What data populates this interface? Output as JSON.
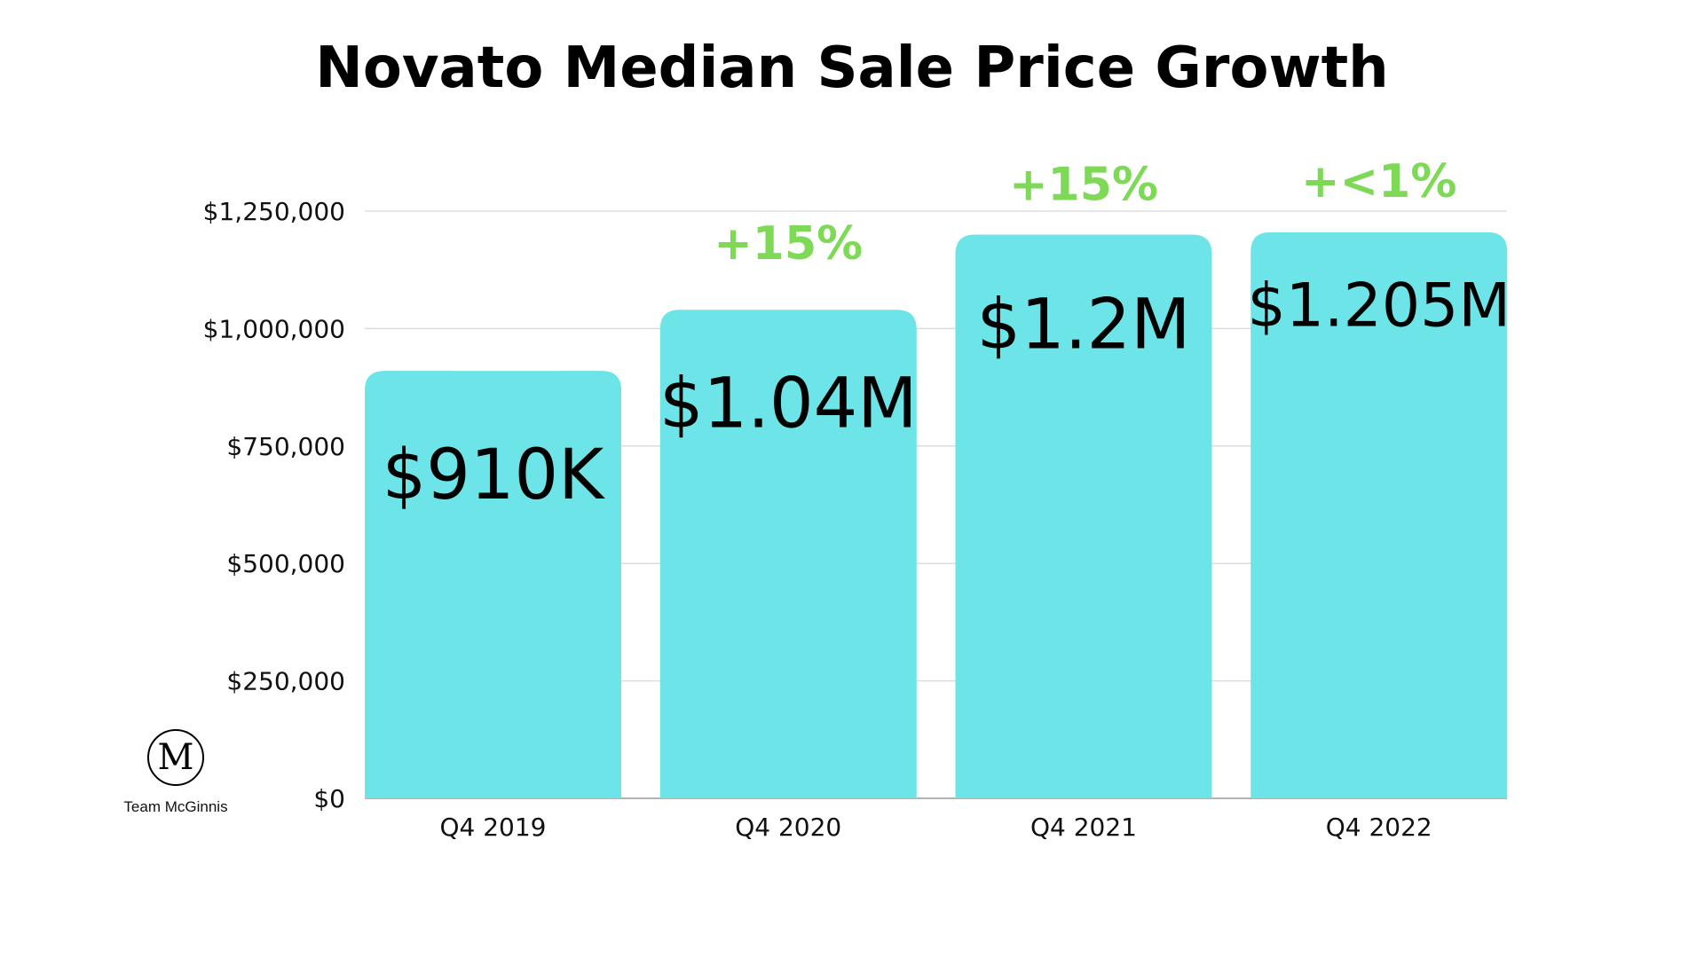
{
  "chart_data": {
    "type": "bar",
    "title": "Novato Median Sale Price Growth",
    "categories": [
      "Q4 2019",
      "Q4 2020",
      "Q4 2021",
      "Q4 2022"
    ],
    "values": [
      910000,
      1040000,
      1200000,
      1205000
    ],
    "value_labels": [
      "$910K",
      "$1.04M",
      "$1.2M",
      "$1.205M"
    ],
    "growth_labels": [
      "",
      "+15%",
      "+15%",
      "+<1%"
    ],
    "ylim": [
      0,
      1250000
    ],
    "yticks": [
      0,
      250000,
      500000,
      750000,
      1000000,
      1250000
    ],
    "ytick_labels": [
      "$0",
      "$250,000",
      "$500,000",
      "$750,000",
      "$1,000,000",
      "$1,250,000"
    ],
    "xlabel": "",
    "ylabel": "",
    "grid": true,
    "colors": {
      "bar": "#6ce4e8",
      "growth": "#7ed957",
      "grid": "#dddddd",
      "text": "#000000"
    }
  },
  "logo": {
    "monogram": "M",
    "name": "Team McGinnis"
  }
}
